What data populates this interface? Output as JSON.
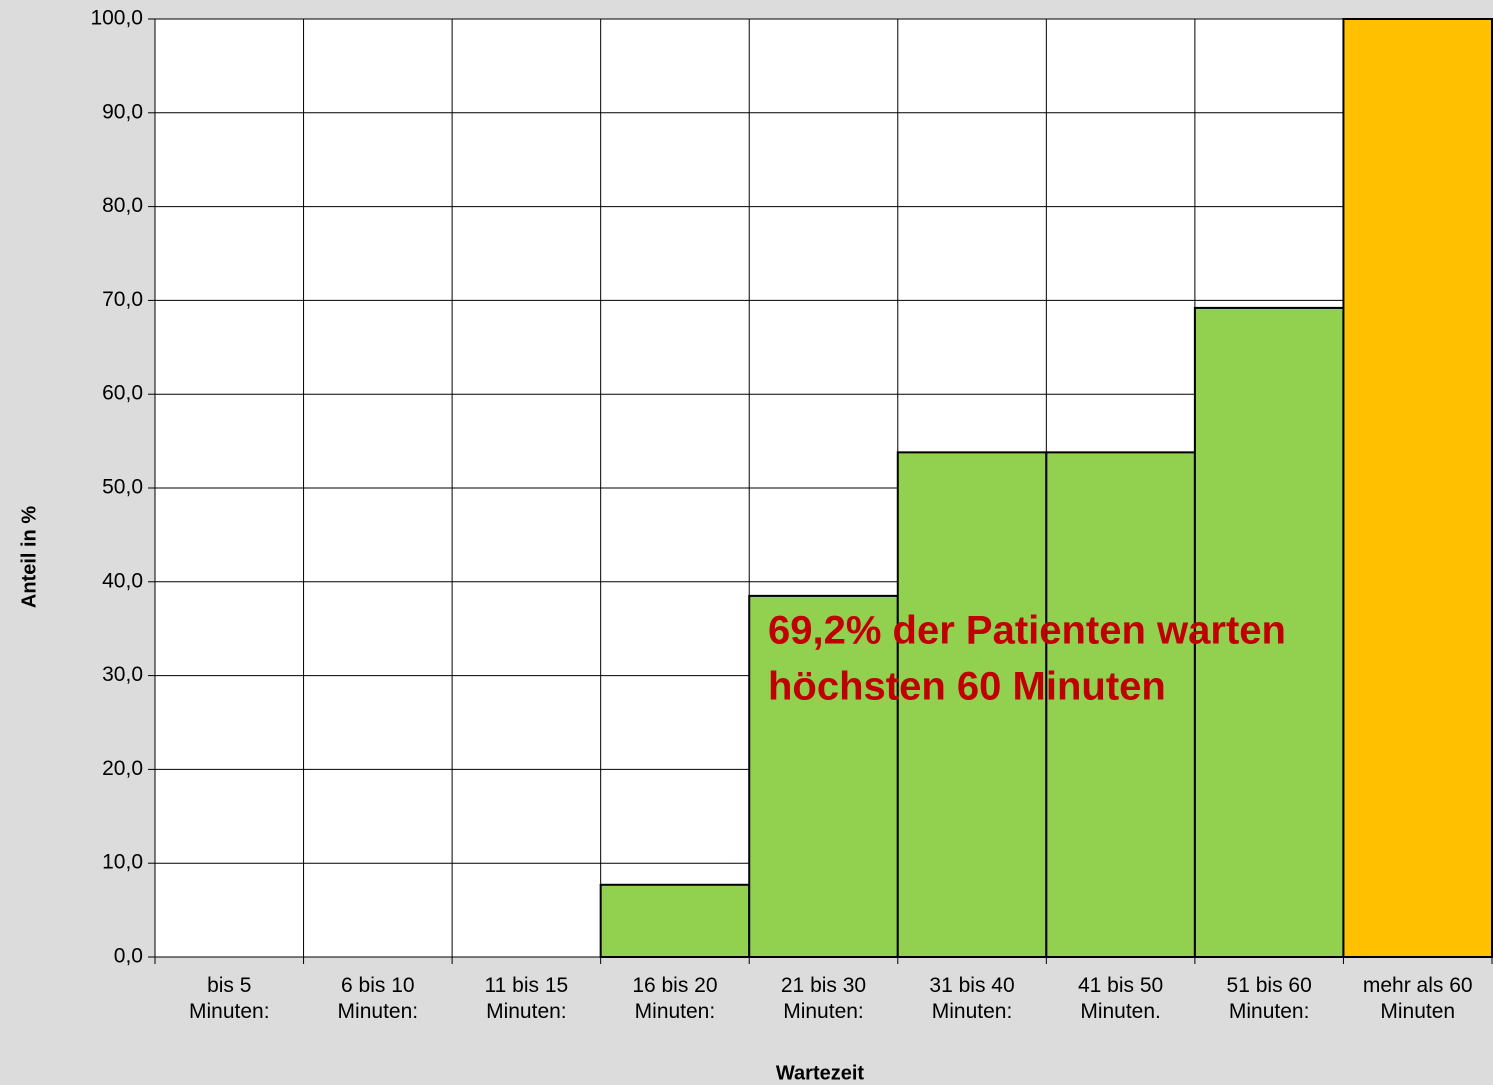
{
  "chart_data": {
    "type": "bar",
    "categories": [
      "bis 5 Minuten:",
      "6 bis 10 Minuten:",
      "11 bis 15 Minuten:",
      "16 bis 20 Minuten:",
      "21 bis 30 Minuten:",
      "31 bis 40 Minuten:",
      "41 bis 50 Minuten.",
      "51 bis 60 Minuten:",
      "mehr als 60 Minuten"
    ],
    "values": [
      0,
      0,
      0,
      7.7,
      38.5,
      53.8,
      53.8,
      69.2,
      100
    ],
    "colors": [
      "#92d050",
      "#92d050",
      "#92d050",
      "#92d050",
      "#92d050",
      "#92d050",
      "#92d050",
      "#92d050",
      "#ffc000"
    ],
    "ylim": [
      0,
      100
    ],
    "yticks": [
      {
        "value": 0,
        "label": "0,0"
      },
      {
        "value": 10,
        "label": "10,0"
      },
      {
        "value": 20,
        "label": "20,0"
      },
      {
        "value": 30,
        "label": "30,0"
      },
      {
        "value": 40,
        "label": "40,0"
      },
      {
        "value": 50,
        "label": "50,0"
      },
      {
        "value": 60,
        "label": "60,0"
      },
      {
        "value": 70,
        "label": "70,0"
      },
      {
        "value": 80,
        "label": "80,0"
      },
      {
        "value": 90,
        "label": "90,0"
      },
      {
        "value": 100,
        "label": "100,0"
      }
    ],
    "grid": true,
    "xlabel": "Wartezeit",
    "ylabel": "Anteil in %",
    "annotation": [
      "69,2% der Patienten warten",
      "höchsten 60 Minuten"
    ]
  }
}
